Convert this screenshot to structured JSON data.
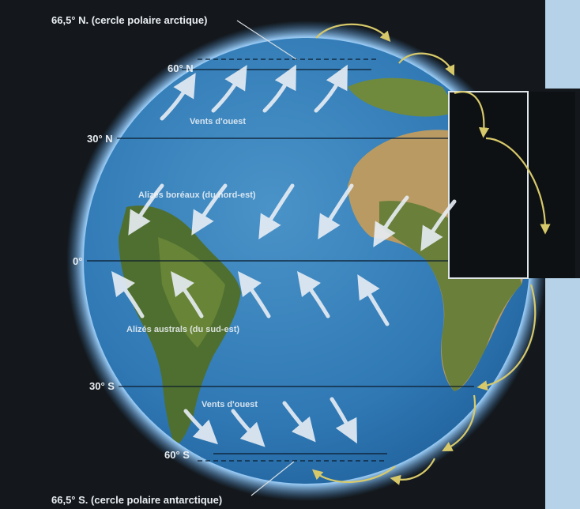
{
  "labels": {
    "top_circle": "66,5° N. (cercle polaire arctique)",
    "bottom_circle": "66,5° S. (cercle polaire antarctique)",
    "lat_60n": "60° N",
    "lat_30n": "30° N",
    "equator": "0°",
    "lat_30s": "30° S",
    "lat_60s": "60° S"
  },
  "wind_bands": {
    "westerlies_north": "Vents d'ouest",
    "trade_winds_north": "Alizés boréaux (du nord-est)",
    "trade_winds_south": "Alizés australs (du sud-est)",
    "westerlies_south": "Vents d'ouest"
  },
  "colors": {
    "background_dark": "#14181c",
    "side_panel": "#b6d2e8",
    "ocean": "#2f78b4",
    "atmosphere_glow": "#8cc8ff",
    "circulation_cells": "#d7c96a",
    "wind_arrows": "#e8eef5",
    "land_green": "#5b7a33",
    "land_desert": "#b99a63"
  }
}
